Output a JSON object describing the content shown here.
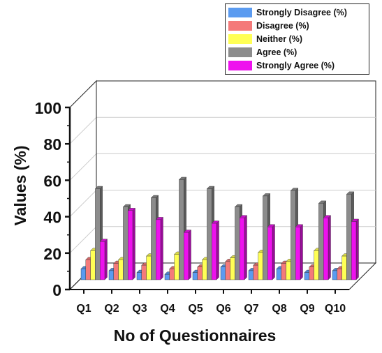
{
  "chart_data": {
    "type": "bar",
    "title": "",
    "xlabel": "No of Questionnaires",
    "ylabel": "Values (%)",
    "ylim": [
      0,
      100
    ],
    "yticks": [
      "0",
      "20",
      "40",
      "60",
      "80",
      "100"
    ],
    "categories": [
      "Q1",
      "Q2",
      "Q3",
      "Q4",
      "Q5",
      "Q6",
      "Q7",
      "Q8",
      "Q9",
      "Q10"
    ],
    "grid": true,
    "legend_position": "top-right",
    "series": [
      {
        "name": "Strongly Disagree (%)",
        "color": "#5b9bf0",
        "values": [
          6,
          5,
          4,
          3,
          4,
          7,
          5,
          6,
          4,
          5
        ]
      },
      {
        "name": "Disagree (%)",
        "color": "#f47a7a",
        "values": [
          11,
          9,
          8,
          6,
          7,
          10,
          8,
          9,
          7,
          6
        ]
      },
      {
        "name": "Neither (%)",
        "color": "#ffff55",
        "values": [
          16,
          11,
          13,
          14,
          11,
          12,
          15,
          10,
          16,
          13
        ]
      },
      {
        "name": "Agree (%)",
        "color": "#8c8c8c",
        "values": [
          50,
          40,
          45,
          55,
          50,
          40,
          46,
          49,
          42,
          47
        ]
      },
      {
        "name": "Strongly Agree (%)",
        "color": "#ee11ee",
        "values": [
          21,
          38,
          33,
          26,
          31,
          34,
          29,
          29,
          34,
          32
        ]
      }
    ]
  }
}
